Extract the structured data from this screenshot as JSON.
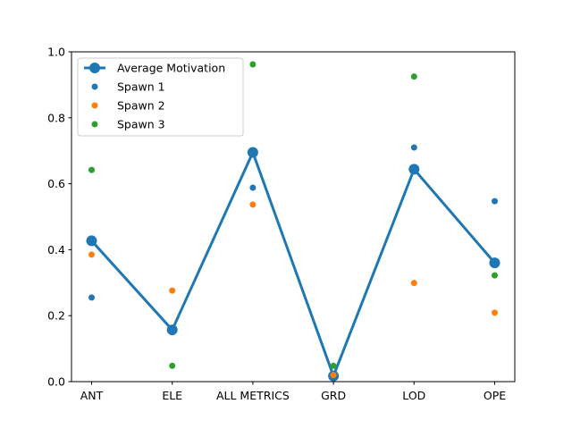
{
  "chart_data": {
    "type": "line",
    "categories": [
      "ANT",
      "ELE",
      "ALL METRICS",
      "GRD",
      "LOD",
      "OPE"
    ],
    "ylim": [
      0,
      1.0
    ],
    "yticks": [
      "0.0",
      "0.2",
      "0.4",
      "0.6",
      "0.8",
      "1.0"
    ],
    "grid": false,
    "legend_position": "top-left",
    "series": [
      {
        "name": "Average Motivation",
        "kind": "line",
        "color": "#1f77b4",
        "values": [
          0.427,
          0.157,
          0.695,
          0.017,
          0.644,
          0.36
        ]
      },
      {
        "name": "Spawn 1",
        "kind": "scatter",
        "color": "#1f77b4",
        "values": [
          0.255,
          0.15,
          0.588,
          0.02,
          0.71,
          0.547
        ]
      },
      {
        "name": "Spawn 2",
        "kind": "scatter",
        "color": "#ff7f0e",
        "values": [
          0.385,
          0.276,
          0.537,
          0.02,
          0.299,
          0.209
        ]
      },
      {
        "name": "Spawn 3",
        "kind": "scatter",
        "color": "#2ca02c",
        "values": [
          0.642,
          0.048,
          0.962,
          0.048,
          0.925,
          0.322
        ]
      }
    ]
  }
}
